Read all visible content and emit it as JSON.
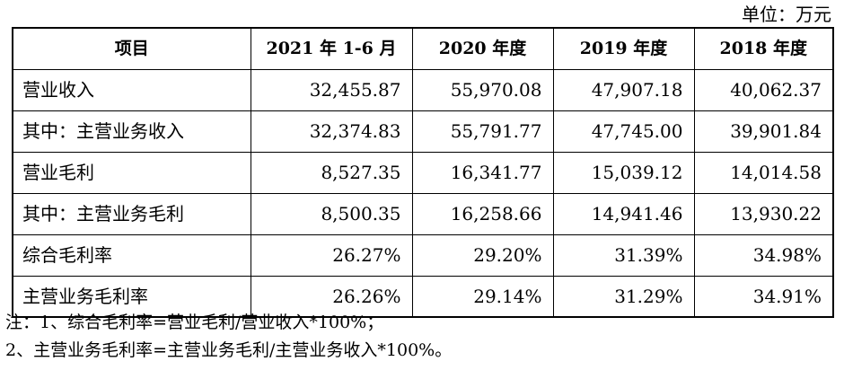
{
  "unit_label": "单位：万元",
  "table": {
    "headers": [
      "项目",
      "2021 年 1-6 月",
      "2020 年度",
      "2019 年度",
      "2018 年度"
    ],
    "rows": [
      {
        "label": "营业收入",
        "values": [
          "32,455.87",
          "55,970.08",
          "47,907.18",
          "40,062.37"
        ]
      },
      {
        "label": "其中：主营业务收入",
        "values": [
          "32,374.83",
          "55,791.77",
          "47,745.00",
          "39,901.84"
        ]
      },
      {
        "label": "营业毛利",
        "values": [
          "8,527.35",
          "16,341.77",
          "15,039.12",
          "14,014.58"
        ]
      },
      {
        "label": "其中：主营业务毛利",
        "values": [
          "8,500.35",
          "16,258.66",
          "14,941.46",
          "13,930.22"
        ]
      },
      {
        "label": "综合毛利率",
        "values": [
          "26.27%",
          "29.20%",
          "31.39%",
          "34.98%"
        ]
      },
      {
        "label": "主营业务毛利率",
        "values": [
          "26.26%",
          "29.14%",
          "31.29%",
          "34.91%"
        ]
      }
    ]
  },
  "notes": [
    "注：1、综合毛利率=营业毛利/营业收入*100%；",
    "2、主营业务毛利率=主营业务毛利/主营业务收入*100%。"
  ]
}
